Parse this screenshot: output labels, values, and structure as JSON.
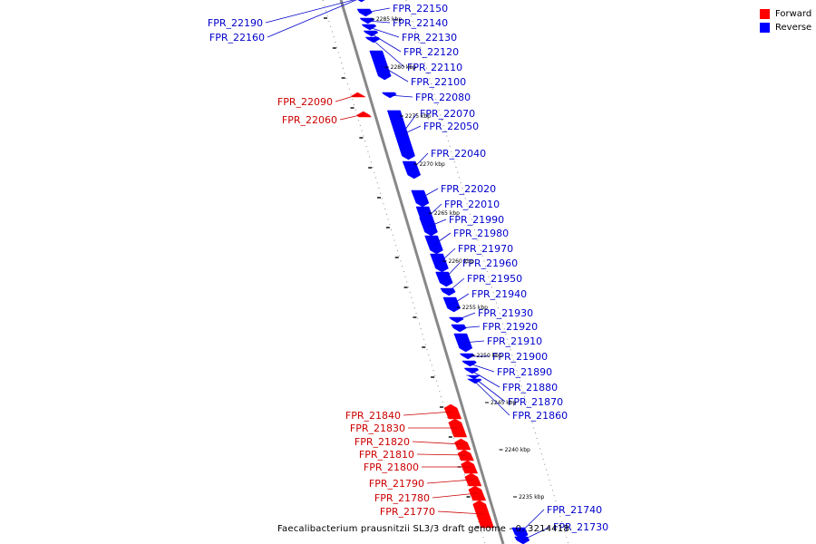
{
  "colors": {
    "forward": "#ff0000",
    "reverse": "#0000ff",
    "backbone": "#888888",
    "forward_text": "#cc0000",
    "reverse_text": "#0000cc"
  },
  "legend": {
    "forward_label": "Forward",
    "reverse_label": "Reverse"
  },
  "footer_text": "Faecalibacterium prausnitzii SL3/3 draft genome - 0..3214418",
  "scale": {
    "unit": "kbp",
    "ticks": [
      2285,
      2280,
      2275,
      2270,
      2265,
      2260,
      2255,
      2250,
      2245,
      2240,
      2235
    ]
  },
  "features": [
    {
      "id": "FPR_22190",
      "strand": "reverse"
    },
    {
      "id": "FPR_22160",
      "strand": "reverse"
    },
    {
      "id": "FPR_22150",
      "strand": "reverse"
    },
    {
      "id": "FPR_22140",
      "strand": "reverse"
    },
    {
      "id": "FPR_22130",
      "strand": "reverse"
    },
    {
      "id": "FPR_22120",
      "strand": "reverse"
    },
    {
      "id": "FPR_22110",
      "strand": "reverse"
    },
    {
      "id": "FPR_22100",
      "strand": "reverse"
    },
    {
      "id": "FPR_22090",
      "strand": "forward"
    },
    {
      "id": "FPR_22080",
      "strand": "reverse"
    },
    {
      "id": "FPR_22070",
      "strand": "reverse"
    },
    {
      "id": "FPR_22060",
      "strand": "forward"
    },
    {
      "id": "FPR_22050",
      "strand": "reverse"
    },
    {
      "id": "FPR_22040",
      "strand": "reverse"
    },
    {
      "id": "FPR_22020",
      "strand": "reverse"
    },
    {
      "id": "FPR_22010",
      "strand": "reverse"
    },
    {
      "id": "FPR_21990",
      "strand": "reverse"
    },
    {
      "id": "FPR_21980",
      "strand": "reverse"
    },
    {
      "id": "FPR_21970",
      "strand": "reverse"
    },
    {
      "id": "FPR_21960",
      "strand": "reverse"
    },
    {
      "id": "FPR_21950",
      "strand": "reverse"
    },
    {
      "id": "FPR_21940",
      "strand": "reverse"
    },
    {
      "id": "FPR_21930",
      "strand": "reverse"
    },
    {
      "id": "FPR_21920",
      "strand": "reverse"
    },
    {
      "id": "FPR_21910",
      "strand": "reverse"
    },
    {
      "id": "FPR_21900",
      "strand": "reverse"
    },
    {
      "id": "FPR_21890",
      "strand": "reverse"
    },
    {
      "id": "FPR_21880",
      "strand": "reverse"
    },
    {
      "id": "FPR_21870",
      "strand": "reverse"
    },
    {
      "id": "FPR_21860",
      "strand": "reverse"
    },
    {
      "id": "FPR_21840",
      "strand": "forward"
    },
    {
      "id": "FPR_21830",
      "strand": "forward"
    },
    {
      "id": "FPR_21820",
      "strand": "forward"
    },
    {
      "id": "FPR_21810",
      "strand": "forward"
    },
    {
      "id": "FPR_21800",
      "strand": "forward"
    },
    {
      "id": "FPR_21790",
      "strand": "forward"
    },
    {
      "id": "FPR_21780",
      "strand": "forward"
    },
    {
      "id": "FPR_21770",
      "strand": "forward"
    },
    {
      "id": "FPR_21740",
      "strand": "reverse"
    },
    {
      "id": "FPR_21730",
      "strand": "reverse"
    }
  ]
}
